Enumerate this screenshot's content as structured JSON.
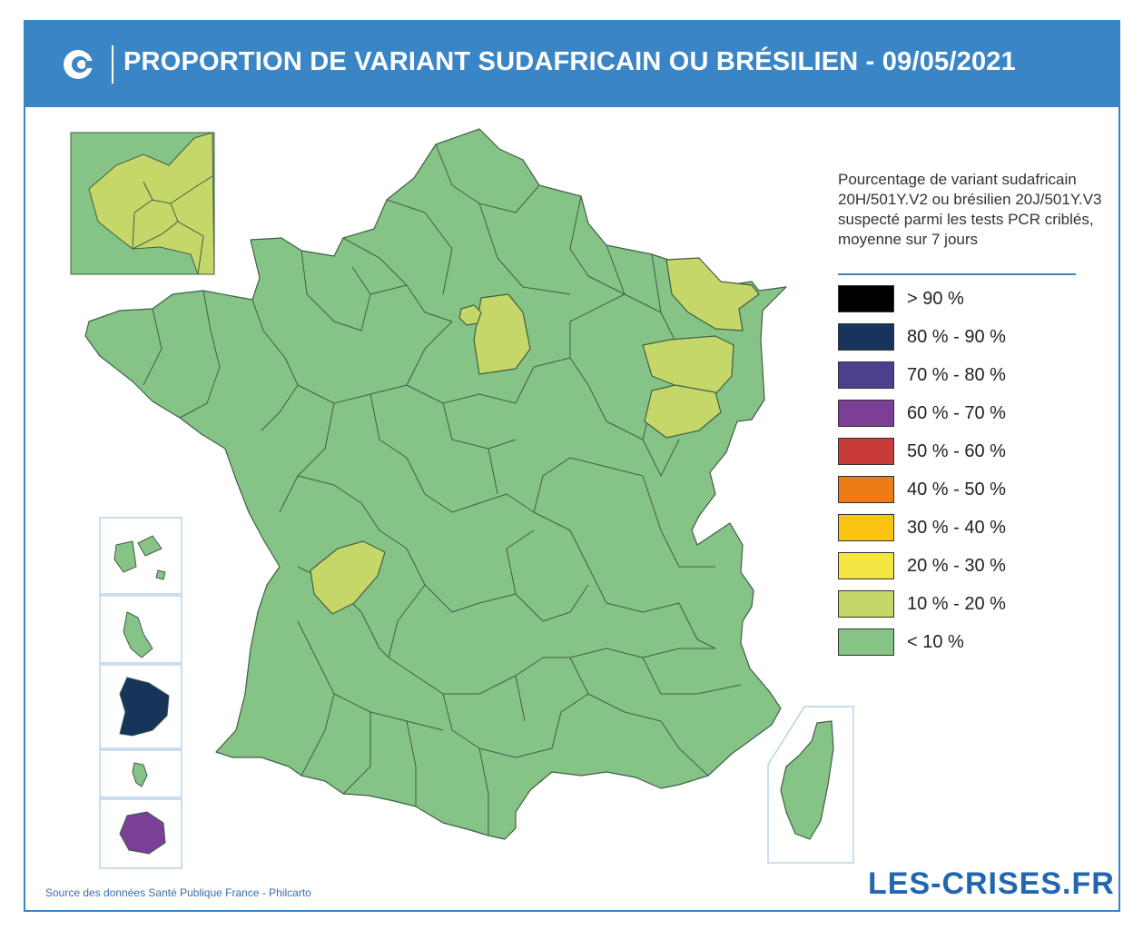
{
  "header": {
    "title": "PROPORTION DE VARIANT SUDAFRICAIN OU BRÉSILIEN - 09/05/2021",
    "logo_icon": "les-crises-c-icon",
    "background_color": "#3a85c6"
  },
  "legend": {
    "title": "Pourcentage de variant sudafricain 20H/501Y.V2 ou brésilien 20J/501Y.V3 suspecté parmi les tests PCR criblés, moyenne sur 7 jours",
    "items": [
      {
        "label": "> 90 %",
        "color": "#000000"
      },
      {
        "label": "80 % - 90 %",
        "color": "#16345c"
      },
      {
        "label": "70 % - 80 %",
        "color": "#4b3f8e"
      },
      {
        "label": "60 % - 70 %",
        "color": "#7b3f96"
      },
      {
        "label": "50 % - 60 %",
        "color": "#c93a3a"
      },
      {
        "label": "40 % - 50 %",
        "color": "#ef7b16"
      },
      {
        "label": "30 % - 40 %",
        "color": "#fbc312"
      },
      {
        "label": "20 % - 30 %",
        "color": "#f5e542"
      },
      {
        "label": "10 % - 20 %",
        "color": "#c6d76a"
      },
      {
        "label": "< 10 %",
        "color": "#86c387"
      }
    ]
  },
  "map": {
    "regions_10_20": [
      "Paris et petite couronne",
      "Seine-et-Marne",
      "Moselle",
      "Haute-Marne",
      "Vosges",
      "Haute-Saône",
      "Charente"
    ],
    "overseas": [
      {
        "name": "Guadeloupe",
        "color": "#86c387"
      },
      {
        "name": "Martinique",
        "color": "#86c387"
      },
      {
        "name": "Guyane",
        "color": "#16345c"
      },
      {
        "name": "Mayotte",
        "color": "#86c387"
      },
      {
        "name": "La Réunion",
        "color": "#7b3f96"
      }
    ]
  },
  "footer": {
    "source": "Source des données Santé Publique France - Philcarto",
    "brand": "LES-CRISES.FR"
  }
}
